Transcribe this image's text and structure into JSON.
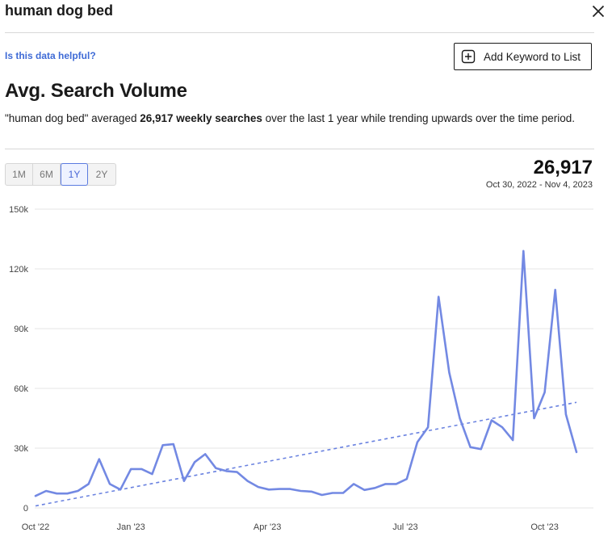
{
  "header": {
    "title": "human dog bed"
  },
  "feedback": {
    "link_text": "Is this data helpful?"
  },
  "actions": {
    "add_keyword_label": "Add Keyword to List"
  },
  "section": {
    "title": "Avg. Search Volume",
    "summary_pre": "\"human dog bed\" averaged ",
    "summary_bold": "26,917 weekly searches",
    "summary_post": " over the last 1 year while trending upwards over the time period."
  },
  "range": {
    "tabs": [
      "1M",
      "6M",
      "1Y",
      "2Y"
    ],
    "active": "1Y"
  },
  "stat": {
    "value": "26,917",
    "period": "Oct 30, 2022 - Nov 4, 2023"
  },
  "colors": {
    "line": "#7389e3",
    "trend": "#6a82e0",
    "grid": "#e6e6e6"
  },
  "chart_data": {
    "type": "line",
    "x_unit": "week",
    "x_start": "2022-10-30",
    "x_end": "2023-11-04",
    "xticks": [
      "Oct '22",
      "Jan '23",
      "Apr '23",
      "Jul '23",
      "Oct '23"
    ],
    "ytick_labels": [
      "0",
      "30k",
      "60k",
      "90k",
      "120k",
      "150k"
    ],
    "ylim": [
      0,
      150000
    ],
    "grid": true,
    "series": [
      {
        "values": [
          6000,
          8500,
          7200,
          7200,
          8500,
          12000,
          24500,
          12000,
          9200,
          19500,
          19500,
          17000,
          31500,
          32000,
          13500,
          23000,
          27000,
          20000,
          18500,
          18000,
          13500,
          10500,
          9200,
          9500,
          9500,
          8500,
          8200,
          6500,
          7500,
          7500,
          12000,
          9000,
          10000,
          12000,
          12000,
          14500,
          33000,
          40500,
          106000,
          68000,
          45000,
          30500,
          29500,
          44000,
          40500,
          34000,
          129000,
          45000,
          58000,
          109500,
          47000,
          28000
        ]
      }
    ],
    "trendline": {
      "start": 1000,
      "end": 53000,
      "style": "dashed"
    }
  }
}
